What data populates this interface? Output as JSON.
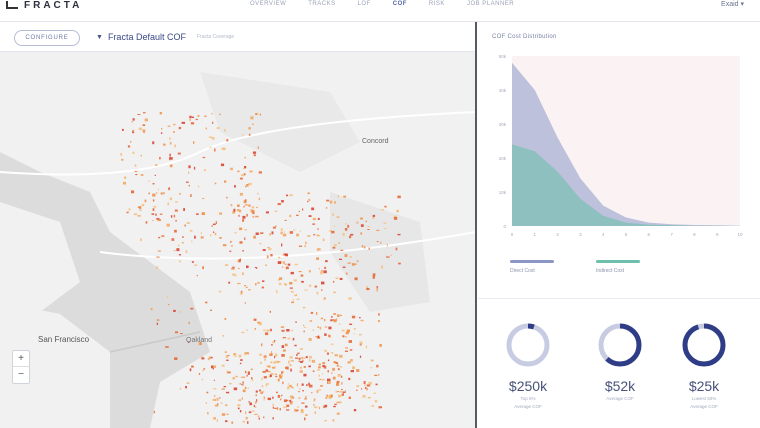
{
  "app": {
    "brand": "FRACTA"
  },
  "nav": {
    "items": [
      {
        "label": "Overview",
        "active": false
      },
      {
        "label": "Tracks",
        "active": false
      },
      {
        "label": "LOF",
        "active": false
      },
      {
        "label": "COF",
        "active": true
      },
      {
        "label": "RISK",
        "active": false
      },
      {
        "label": "Job Planner",
        "active": false
      }
    ],
    "user_label": "Exaid ▾"
  },
  "toolbar": {
    "configure_label": "CONFIGURE",
    "cof_label": "Fracta Default COF",
    "cof_sub": "Fracta Coverage"
  },
  "map": {
    "places": [
      "Concord",
      "San Francisco",
      "Oakland"
    ],
    "zoom_in": "+",
    "zoom_out": "−"
  },
  "chart_data": {
    "type": "area",
    "title": "COF Cost Distribution",
    "x": [
      "0",
      "1",
      "2",
      "3",
      "4",
      "5",
      "6",
      "7",
      "8",
      "9",
      "10"
    ],
    "y_ticks": [
      "0",
      "10k",
      "20k",
      "30k",
      "40k",
      "50k"
    ],
    "ylim": [
      0,
      50000
    ],
    "series": [
      {
        "name": "Direct Cost",
        "color": "#8c97c6",
        "values": [
          48000,
          40000,
          26000,
          14000,
          6000,
          2500,
          1000,
          500,
          300,
          200,
          100
        ]
      },
      {
        "name": "Indirect Cost",
        "color": "#6ec0ad",
        "values": [
          24000,
          22000,
          16000,
          8000,
          3000,
          1000,
          400,
          200,
          100,
          50,
          0
        ]
      }
    ]
  },
  "stats": [
    {
      "value": "$250k",
      "sub1": "Top 5%",
      "sub2": "Average COF",
      "fraction": 0.05
    },
    {
      "value": "$52k",
      "sub1": "",
      "sub2": "Average COF",
      "fraction": 0.62
    },
    {
      "value": "$25k",
      "sub1": "Lowest 50%",
      "sub2": "Average COF",
      "fraction": 0.95
    }
  ],
  "colors": {
    "accent": "#3c4a86",
    "ring": "#2f3d87",
    "ring_track": "#c7cce3",
    "direct": "#8c97c6",
    "indirect": "#6ec0ad"
  }
}
